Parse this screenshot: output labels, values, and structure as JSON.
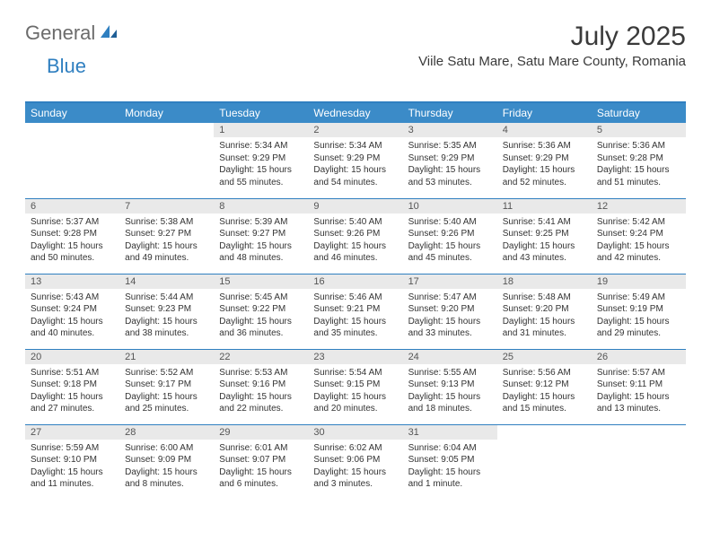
{
  "brand": {
    "general": "General",
    "blue": "Blue"
  },
  "title": "July 2025",
  "location": "Viile Satu Mare, Satu Mare County, Romania",
  "colors": {
    "header_bg": "#3b8bc8",
    "accent_line": "#2f7fc0",
    "daynum_bg": "#e9e9e9",
    "text": "#333333",
    "logo_gray": "#6b6b6b",
    "logo_blue": "#2f7fc0"
  },
  "weekdays": [
    "Sunday",
    "Monday",
    "Tuesday",
    "Wednesday",
    "Thursday",
    "Friday",
    "Saturday"
  ],
  "grid": [
    [
      null,
      null,
      {
        "n": "1",
        "sunrise": "5:34 AM",
        "sunset": "9:29 PM",
        "daylight": "15 hours and 55 minutes."
      },
      {
        "n": "2",
        "sunrise": "5:34 AM",
        "sunset": "9:29 PM",
        "daylight": "15 hours and 54 minutes."
      },
      {
        "n": "3",
        "sunrise": "5:35 AM",
        "sunset": "9:29 PM",
        "daylight": "15 hours and 53 minutes."
      },
      {
        "n": "4",
        "sunrise": "5:36 AM",
        "sunset": "9:29 PM",
        "daylight": "15 hours and 52 minutes."
      },
      {
        "n": "5",
        "sunrise": "5:36 AM",
        "sunset": "9:28 PM",
        "daylight": "15 hours and 51 minutes."
      }
    ],
    [
      {
        "n": "6",
        "sunrise": "5:37 AM",
        "sunset": "9:28 PM",
        "daylight": "15 hours and 50 minutes."
      },
      {
        "n": "7",
        "sunrise": "5:38 AM",
        "sunset": "9:27 PM",
        "daylight": "15 hours and 49 minutes."
      },
      {
        "n": "8",
        "sunrise": "5:39 AM",
        "sunset": "9:27 PM",
        "daylight": "15 hours and 48 minutes."
      },
      {
        "n": "9",
        "sunrise": "5:40 AM",
        "sunset": "9:26 PM",
        "daylight": "15 hours and 46 minutes."
      },
      {
        "n": "10",
        "sunrise": "5:40 AM",
        "sunset": "9:26 PM",
        "daylight": "15 hours and 45 minutes."
      },
      {
        "n": "11",
        "sunrise": "5:41 AM",
        "sunset": "9:25 PM",
        "daylight": "15 hours and 43 minutes."
      },
      {
        "n": "12",
        "sunrise": "5:42 AM",
        "sunset": "9:24 PM",
        "daylight": "15 hours and 42 minutes."
      }
    ],
    [
      {
        "n": "13",
        "sunrise": "5:43 AM",
        "sunset": "9:24 PM",
        "daylight": "15 hours and 40 minutes."
      },
      {
        "n": "14",
        "sunrise": "5:44 AM",
        "sunset": "9:23 PM",
        "daylight": "15 hours and 38 minutes."
      },
      {
        "n": "15",
        "sunrise": "5:45 AM",
        "sunset": "9:22 PM",
        "daylight": "15 hours and 36 minutes."
      },
      {
        "n": "16",
        "sunrise": "5:46 AM",
        "sunset": "9:21 PM",
        "daylight": "15 hours and 35 minutes."
      },
      {
        "n": "17",
        "sunrise": "5:47 AM",
        "sunset": "9:20 PM",
        "daylight": "15 hours and 33 minutes."
      },
      {
        "n": "18",
        "sunrise": "5:48 AM",
        "sunset": "9:20 PM",
        "daylight": "15 hours and 31 minutes."
      },
      {
        "n": "19",
        "sunrise": "5:49 AM",
        "sunset": "9:19 PM",
        "daylight": "15 hours and 29 minutes."
      }
    ],
    [
      {
        "n": "20",
        "sunrise": "5:51 AM",
        "sunset": "9:18 PM",
        "daylight": "15 hours and 27 minutes."
      },
      {
        "n": "21",
        "sunrise": "5:52 AM",
        "sunset": "9:17 PM",
        "daylight": "15 hours and 25 minutes."
      },
      {
        "n": "22",
        "sunrise": "5:53 AM",
        "sunset": "9:16 PM",
        "daylight": "15 hours and 22 minutes."
      },
      {
        "n": "23",
        "sunrise": "5:54 AM",
        "sunset": "9:15 PM",
        "daylight": "15 hours and 20 minutes."
      },
      {
        "n": "24",
        "sunrise": "5:55 AM",
        "sunset": "9:13 PM",
        "daylight": "15 hours and 18 minutes."
      },
      {
        "n": "25",
        "sunrise": "5:56 AM",
        "sunset": "9:12 PM",
        "daylight": "15 hours and 15 minutes."
      },
      {
        "n": "26",
        "sunrise": "5:57 AM",
        "sunset": "9:11 PM",
        "daylight": "15 hours and 13 minutes."
      }
    ],
    [
      {
        "n": "27",
        "sunrise": "5:59 AM",
        "sunset": "9:10 PM",
        "daylight": "15 hours and 11 minutes."
      },
      {
        "n": "28",
        "sunrise": "6:00 AM",
        "sunset": "9:09 PM",
        "daylight": "15 hours and 8 minutes."
      },
      {
        "n": "29",
        "sunrise": "6:01 AM",
        "sunset": "9:07 PM",
        "daylight": "15 hours and 6 minutes."
      },
      {
        "n": "30",
        "sunrise": "6:02 AM",
        "sunset": "9:06 PM",
        "daylight": "15 hours and 3 minutes."
      },
      {
        "n": "31",
        "sunrise": "6:04 AM",
        "sunset": "9:05 PM",
        "daylight": "15 hours and 1 minute."
      },
      null,
      null
    ]
  ],
  "labels": {
    "sunrise": "Sunrise: ",
    "sunset": "Sunset: ",
    "daylight": "Daylight: "
  }
}
